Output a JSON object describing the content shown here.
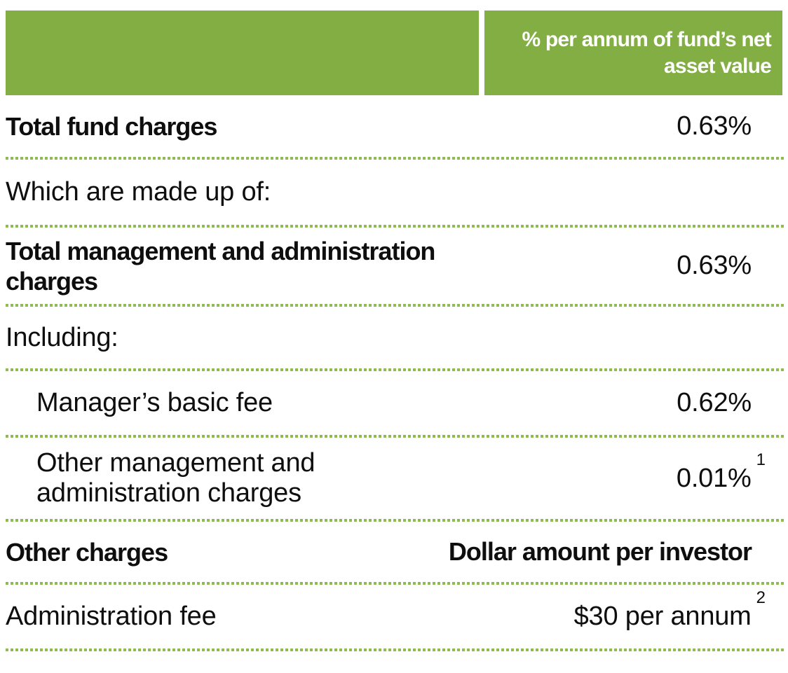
{
  "colors": {
    "green": "#82AE43",
    "dot_green": "#8EBB52",
    "text": "#0E0E0E",
    "header_text": "#FFFFFF"
  },
  "header": {
    "col2_label": "% per annum of fund’s net asset value"
  },
  "rows": [
    {
      "label": "Total fund charges",
      "value": "0.63%"
    },
    {
      "label": "Which are made up of:"
    },
    {
      "label": "Total management and administration charges",
      "value": "0.63%"
    },
    {
      "label": "Including:"
    },
    {
      "label": "Manager’s basic fee",
      "value": "0.62%"
    },
    {
      "label": "Other management and administration charges",
      "value": "0.01%",
      "footnote": "1"
    },
    {
      "label": "Other charges",
      "value": "Dollar amount per investor"
    },
    {
      "label": "Administration fee",
      "value": "$30 per annum",
      "footnote": "2"
    }
  ]
}
